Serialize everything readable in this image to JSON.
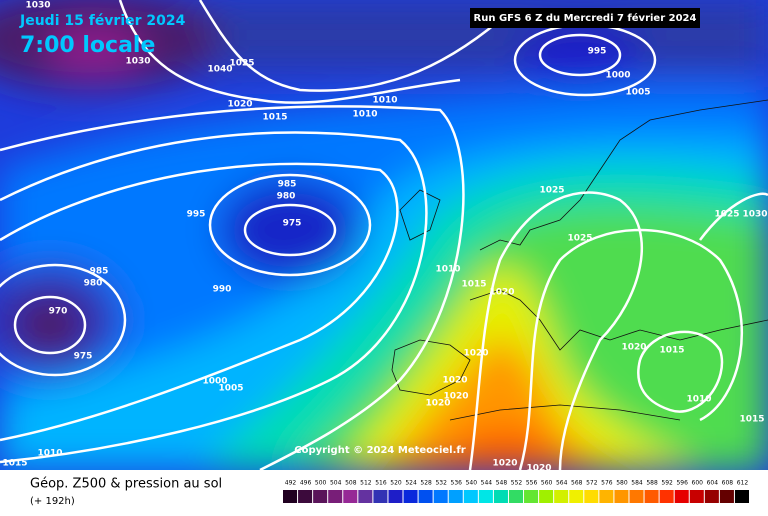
{
  "header": {
    "valid_date": "Jeudi 15 février 2024",
    "local_time": "7:00 locale",
    "run": "Run GFS 6 Z du Mercredi 7 février 2024"
  },
  "copyright": "Copyright © 2024 Meteociel.fr",
  "isobar_labels": [
    "1030",
    "1030",
    "1040",
    "1025",
    "1020",
    "1015",
    "1010",
    "1010",
    "995",
    "1000",
    "1005",
    "985",
    "980",
    "975",
    "995",
    "985",
    "980",
    "990",
    "970",
    "975",
    "1000",
    "1005",
    "1025",
    "1025",
    "1025",
    "1030",
    "1010",
    "1015",
    "1020",
    "1020",
    "1020",
    "1020",
    "1020",
    "1020",
    "1015",
    "1010",
    "1015",
    "1015",
    "1010",
    "1020",
    "1020"
  ],
  "footer": {
    "title": "Géop. Z500 & pression au sol",
    "lead_time": "(+ 192h)"
  },
  "legend": {
    "labels": [
      "492",
      "496",
      "500",
      "504",
      "508",
      "512",
      "516",
      "520",
      "524",
      "528",
      "532",
      "536",
      "540",
      "544",
      "548",
      "552",
      "556",
      "560",
      "564",
      "568",
      "572",
      "576",
      "580",
      "584",
      "588",
      "592",
      "596",
      "600",
      "604",
      "608",
      "612"
    ],
    "colors": [
      "#200020",
      "#3c0a3c",
      "#5a145a",
      "#781e78",
      "#962896",
      "#6432a0",
      "#3232b4",
      "#1e1ec8",
      "#0a28dc",
      "#0050f0",
      "#0078ff",
      "#00a0ff",
      "#00c8ff",
      "#00e6e6",
      "#00dcb4",
      "#32dc64",
      "#64e632",
      "#a0f000",
      "#d2f000",
      "#f0f000",
      "#ffdc00",
      "#ffb400",
      "#ff9600",
      "#ff7800",
      "#ff5a00",
      "#ff3200",
      "#e60000",
      "#c80000",
      "#960000",
      "#640000",
      "#000000"
    ]
  }
}
